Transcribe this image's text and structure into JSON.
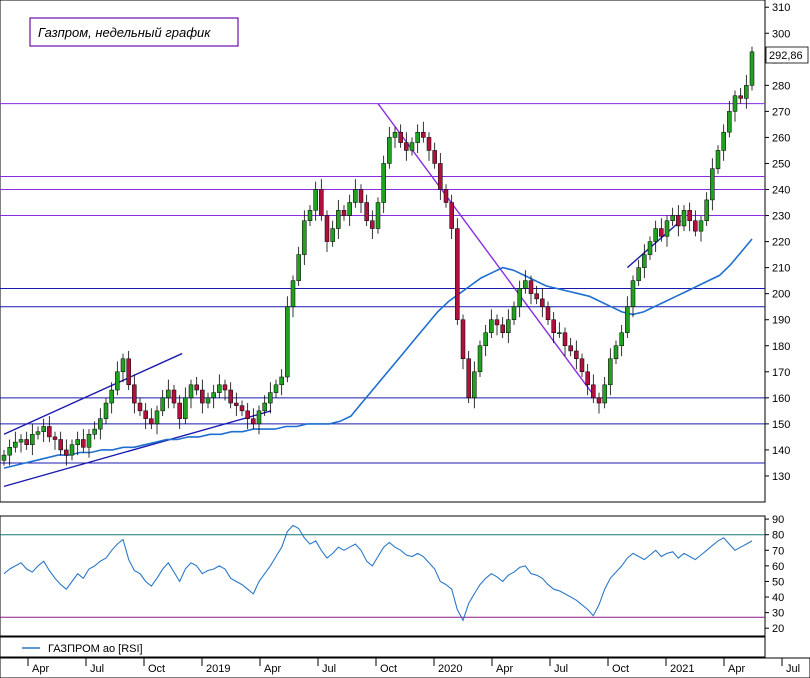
{
  "title": "Газпром, недельный график",
  "last_price_label": "292,86",
  "colors": {
    "up": "#22a022",
    "down": "#b0103c",
    "ma": "#1e6fd0",
    "trend_purple": "#8a2be2",
    "horizontal_blue": "#1a1ab0",
    "rsi_line": "#2a78c8",
    "rsi_level": "#127a7a",
    "rsi_low_level": "#8a1a8a",
    "frame": "#6a0dad"
  },
  "legend": {
    "label": "ГАЗПРОМ ао [RSI]"
  },
  "chart_data": [
    {
      "type": "candlestick",
      "y_scale": "linear",
      "ylim": [
        120,
        312
      ],
      "yticks": [
        130,
        140,
        150,
        160,
        170,
        180,
        190,
        200,
        210,
        220,
        230,
        240,
        250,
        260,
        270,
        280,
        290,
        300,
        310
      ],
      "x_period": "weekly",
      "x_range": [
        "2018-01",
        "2021-07"
      ],
      "x_tick_labels": [
        "Apr",
        "Jul",
        "Oct",
        "2019",
        "Apr",
        "Jul",
        "Oct",
        "2020",
        "Apr",
        "Jul",
        "Oct",
        "2021",
        "Apr",
        "Jul"
      ],
      "last_close": 292.86,
      "close_series": [
        138,
        141,
        143,
        144,
        142,
        146,
        147,
        149,
        145,
        144,
        140,
        138,
        142,
        144,
        141,
        146,
        148,
        152,
        158,
        163,
        170,
        175,
        165,
        158,
        155,
        152,
        150,
        155,
        160,
        163,
        158,
        152,
        160,
        165,
        163,
        158,
        160,
        162,
        165,
        163,
        158,
        157,
        155,
        152,
        150,
        155,
        158,
        162,
        165,
        168,
        195,
        205,
        215,
        228,
        232,
        240,
        230,
        220,
        225,
        232,
        230,
        235,
        240,
        235,
        228,
        225,
        235,
        250,
        260,
        262,
        258,
        255,
        258,
        262,
        260,
        255,
        250,
        240,
        235,
        225,
        190,
        175,
        160,
        170,
        180,
        185,
        190,
        188,
        185,
        190,
        195,
        202,
        205,
        200,
        198,
        195,
        190,
        185,
        185,
        180,
        178,
        175,
        170,
        165,
        160,
        158,
        165,
        175,
        180,
        185,
        195,
        205,
        210,
        215,
        220,
        225,
        222,
        228,
        230,
        226,
        232,
        228,
        224,
        228,
        236,
        248,
        255,
        262,
        270,
        276,
        275,
        280,
        292.86
      ],
      "moving_average": [
        133,
        134,
        135,
        136,
        137,
        138,
        138,
        139,
        139,
        140,
        140,
        141,
        141,
        142,
        143,
        144,
        144,
        145,
        145,
        146,
        146,
        147,
        147,
        148,
        148,
        148,
        149,
        149,
        150,
        150,
        150,
        151,
        153,
        158,
        163,
        168,
        173,
        178,
        183,
        188,
        193,
        197,
        200,
        203,
        206,
        208,
        210,
        209,
        207,
        205,
        203,
        202,
        201,
        200,
        199,
        197,
        195,
        193,
        192,
        193,
        195,
        197,
        199,
        201,
        203,
        205,
        207,
        211,
        216,
        221
      ],
      "annotations": [
        {
          "kind": "trendline",
          "color": "purple",
          "from": [
            "2019-10",
            273
          ],
          "to": [
            "2020-10",
            162
          ]
        },
        {
          "kind": "trendline",
          "color": "blue",
          "from": [
            "2018-01",
            146
          ],
          "to": [
            "2018-11",
            177
          ]
        },
        {
          "kind": "trendline",
          "color": "blue",
          "from": [
            "2018-01",
            126
          ],
          "to": [
            "2019-04",
            155
          ]
        },
        {
          "kind": "trendline",
          "color": "blue",
          "from": [
            "2020-12",
            210
          ],
          "to": [
            "2021-03",
            228
          ]
        },
        {
          "kind": "hline",
          "color": "purple",
          "value": 273
        },
        {
          "kind": "hline",
          "color": "purple",
          "value": 245
        },
        {
          "kind": "hline",
          "color": "blue",
          "value": 202
        },
        {
          "kind": "hline",
          "color": "blue",
          "value": 195
        },
        {
          "kind": "hline",
          "color": "blue",
          "value": 160
        },
        {
          "kind": "hline",
          "color": "blue",
          "value": 150
        },
        {
          "kind": "hline",
          "color": "blue",
          "value": 135
        },
        {
          "kind": "hline",
          "color": "purple",
          "value": 240
        },
        {
          "kind": "hline",
          "color": "purple",
          "value": 230
        }
      ]
    },
    {
      "type": "line",
      "series": [
        {
          "name": "ГАЗПРОМ ао [RSI]"
        }
      ],
      "ylim": [
        15,
        92
      ],
      "yticks": [
        20,
        30,
        40,
        50,
        60,
        70,
        80,
        90
      ],
      "levels": [
        80,
        27
      ],
      "values": [
        55,
        58,
        60,
        62,
        58,
        56,
        60,
        63,
        57,
        52,
        48,
        45,
        50,
        55,
        52,
        58,
        60,
        63,
        65,
        70,
        74,
        77,
        64,
        57,
        55,
        50,
        47,
        52,
        58,
        62,
        56,
        50,
        58,
        62,
        60,
        55,
        57,
        58,
        60,
        58,
        52,
        50,
        48,
        45,
        42,
        50,
        55,
        60,
        66,
        72,
        82,
        86,
        84,
        78,
        74,
        76,
        70,
        65,
        68,
        72,
        70,
        72,
        74,
        70,
        63,
        60,
        66,
        72,
        75,
        72,
        70,
        67,
        66,
        68,
        66,
        62,
        58,
        50,
        48,
        45,
        32,
        25,
        36,
        42,
        48,
        52,
        55,
        53,
        50,
        54,
        56,
        59,
        60,
        55,
        54,
        52,
        48,
        45,
        44,
        42,
        40,
        38,
        35,
        32,
        28,
        35,
        45,
        52,
        56,
        60,
        65,
        68,
        66,
        64,
        67,
        70,
        66,
        68,
        69,
        65,
        68,
        66,
        64,
        67,
        70,
        73,
        76,
        78,
        74,
        70,
        72,
        74,
        76
      ]
    }
  ]
}
